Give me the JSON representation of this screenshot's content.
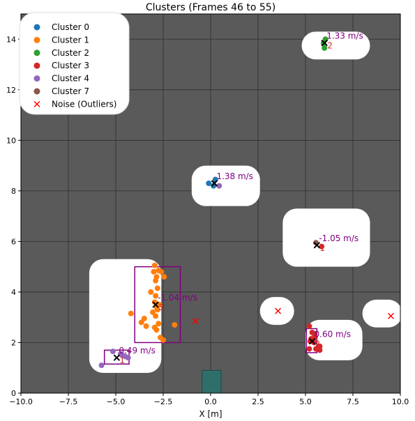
{
  "chart_data": {
    "type": "scatter",
    "title": "Clusters (Frames 46 to 55)",
    "xlabel": "X [m]",
    "ylabel": "",
    "xlim": [
      -10,
      10
    ],
    "ylim": [
      0,
      15
    ],
    "x_ticks": [
      -10,
      -7.5,
      -5,
      -2.5,
      0,
      2.5,
      5,
      7.5,
      10
    ],
    "x_tick_labels": [
      "−10.0",
      "−7.5",
      "−5.0",
      "−2.5",
      "0.0",
      "2.5",
      "5.0",
      "7.5",
      "10.0"
    ],
    "y_ticks": [
      0,
      2,
      4,
      6,
      8,
      10,
      12,
      14
    ],
    "y_tick_labels": [
      "0",
      "2",
      "4",
      "6",
      "8",
      "10",
      "12",
      "14"
    ],
    "grid": true,
    "background_color": "#5a5a5a",
    "legend_position": "top-left",
    "legend": [
      {
        "label": "Cluster 0",
        "color": "#1f77b4",
        "marker": "circle"
      },
      {
        "label": "Cluster 1",
        "color": "#ff7f0e",
        "marker": "circle"
      },
      {
        "label": "Cluster 2",
        "color": "#2ca02c",
        "marker": "circle"
      },
      {
        "label": "Cluster 3",
        "color": "#d62728",
        "marker": "circle"
      },
      {
        "label": "Cluster 4",
        "color": "#9467bd",
        "marker": "circle"
      },
      {
        "label": "Cluster 7",
        "color": "#8c564b",
        "marker": "circle"
      },
      {
        "label": "Noise (Outliers)",
        "color": "#ff0000",
        "marker": "x"
      }
    ],
    "highlight_regions": [
      {
        "x": [
          -6.4,
          -2.6
        ],
        "y": [
          0.8,
          5.3
        ]
      },
      {
        "x": [
          -1.0,
          2.6
        ],
        "y": [
          7.4,
          9.0
        ]
      },
      {
        "x": [
          2.6,
          4.4
        ],
        "y": [
          2.7,
          3.8
        ]
      },
      {
        "x": [
          3.8,
          8.4
        ],
        "y": [
          5.0,
          7.3
        ]
      },
      {
        "x": [
          5.0,
          8.0
        ],
        "y": [
          1.3,
          2.9
        ]
      },
      {
        "x": [
          8.0,
          10.1
        ],
        "y": [
          2.6,
          3.7
        ]
      },
      {
        "x": [
          4.8,
          8.4
        ],
        "y": [
          13.2,
          14.3
        ]
      }
    ],
    "series": [
      {
        "name": "Cluster 0",
        "color": "#1f77b4",
        "x": [
          -0.1,
          0.15,
          0.25
        ],
        "y": [
          8.3,
          8.2,
          8.45
        ]
      },
      {
        "name": "Cluster 1",
        "color": "#ff7f0e",
        "x": [
          -2.95,
          -2.75,
          -2.6,
          -3.0,
          -2.85,
          -2.9,
          -2.45,
          -3.15,
          -2.8,
          -2.9,
          -2.95,
          -2.85,
          -3.05,
          -2.7,
          -2.8,
          -2.9,
          -3.5,
          -3.65,
          -3.4,
          -4.2,
          -2.75,
          -2.95,
          -2.85,
          -1.9,
          -2.65,
          -2.5
        ],
        "y": [
          5.05,
          4.85,
          4.8,
          4.8,
          4.6,
          4.45,
          4.6,
          4.0,
          4.15,
          3.85,
          3.6,
          3.4,
          3.2,
          3.5,
          3.3,
          3.05,
          2.95,
          2.8,
          2.65,
          3.15,
          2.75,
          2.6,
          2.5,
          2.7,
          2.2,
          2.1
        ]
      },
      {
        "name": "Cluster 2",
        "color": "#2ca02c",
        "x": [
          5.95,
          6.0,
          6.05
        ],
        "y": [
          13.85,
          13.65,
          14.0
        ]
      },
      {
        "name": "Cluster 3",
        "color": "#d62728",
        "x": [
          5.2,
          5.35,
          5.45,
          5.5,
          5.3,
          5.25,
          5.45,
          5.2,
          5.55,
          5.75,
          5.75,
          5.85
        ],
        "y": [
          2.65,
          2.4,
          2.35,
          2.2,
          2.15,
          2.05,
          2.0,
          1.75,
          1.75,
          1.85,
          1.7,
          5.8
        ]
      },
      {
        "name": "Cluster 4",
        "color": "#9467bd",
        "x": [
          -5.15,
          -4.75,
          -4.65,
          -4.5,
          -4.35,
          -5.75,
          0.45
        ],
        "y": [
          1.65,
          1.55,
          1.5,
          1.45,
          1.4,
          1.1,
          8.2
        ]
      },
      {
        "name": "Cluster 7",
        "color": "#8c564b",
        "x": [
          5.55
        ],
        "y": [
          5.95
        ]
      }
    ],
    "noise": {
      "x": [
        -0.8,
        3.55,
        9.5
      ],
      "y": [
        2.85,
        3.25,
        3.05
      ]
    },
    "centroids": [
      {
        "x": -2.9,
        "y": 3.5,
        "speed": "-1.04 m/s",
        "id": "3"
      },
      {
        "x": -4.95,
        "y": 1.4,
        "speed": "0.49 m/s",
        "id": "1"
      },
      {
        "x": 0.2,
        "y": 8.3,
        "speed": "1.38 m/s",
        "id": ""
      },
      {
        "x": 5.6,
        "y": 5.85,
        "speed": "-1.05 m/s",
        "id": "1"
      },
      {
        "x": 5.35,
        "y": 2.05,
        "speed": "0.60 m/s",
        "id": "2"
      },
      {
        "x": 6.0,
        "y": 13.85,
        "speed": "1.33 m/s",
        "id": "2"
      }
    ],
    "bounding_boxes": [
      {
        "x": [
          -4.0,
          -1.6
        ],
        "y": [
          2.0,
          5.0
        ]
      },
      {
        "x": [
          -5.6,
          -4.3
        ],
        "y": [
          1.15,
          1.7
        ]
      },
      {
        "x": [
          5.05,
          5.6
        ],
        "y": [
          1.6,
          2.55
        ]
      }
    ],
    "ego_vehicle": {
      "x": [
        -0.45,
        0.55
      ],
      "y": [
        0,
        0.9
      ],
      "color": "#2f6f6a"
    }
  }
}
